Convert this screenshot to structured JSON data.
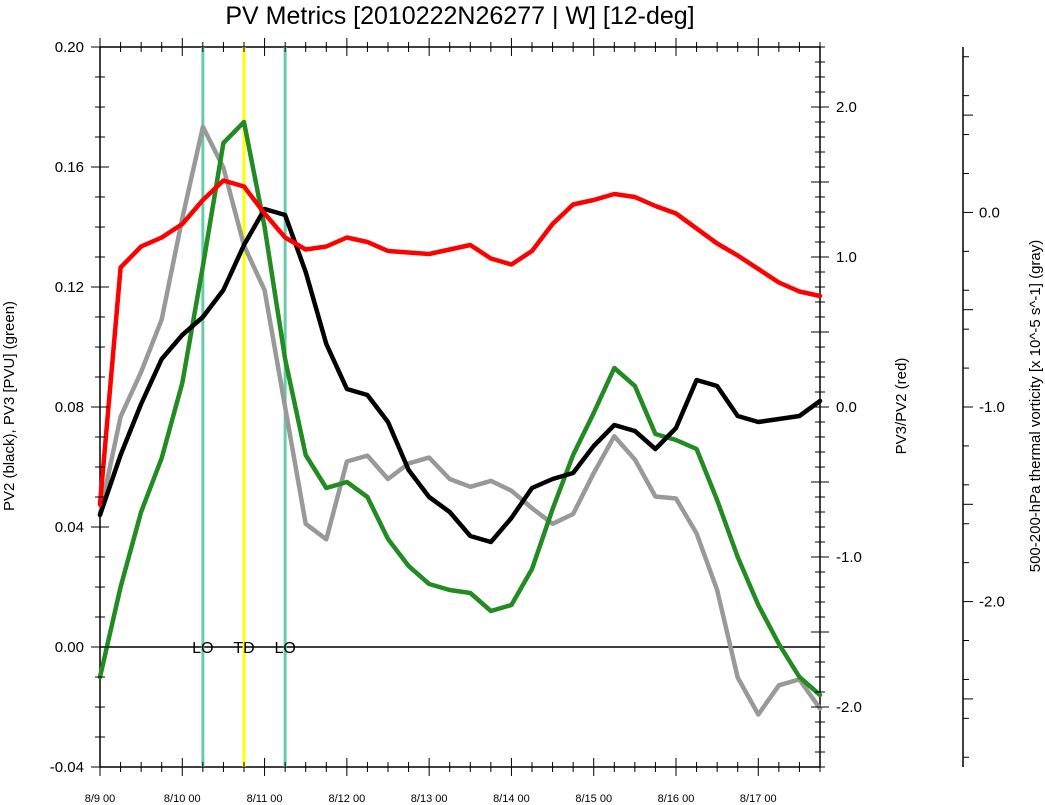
{
  "chart_data": {
    "type": "line",
    "title": "PV Metrics [2010222N26277 | W] [12-deg]",
    "x_tick_labels": [
      "8/9 00",
      "8/10 00",
      "8/11 00",
      "8/12 00",
      "8/13 00",
      "8/14 00",
      "8/15 00",
      "8/16 00",
      "8/17 00"
    ],
    "xlim": [
      0,
      8.75
    ],
    "x_unit": "days since 8/9 00",
    "left_axis": {
      "label": "PV2 (black), PV3 [PVU] (green)",
      "ylim": [
        -0.04,
        0.2
      ],
      "tick_labels": [
        "-0.04",
        "0.00",
        "0.04",
        "0.08",
        "0.12",
        "0.16",
        "0.20"
      ],
      "ticks": [
        -0.04,
        0.0,
        0.04,
        0.08,
        0.12,
        0.16,
        0.2
      ]
    },
    "right_axis": {
      "label": "PV3/PV2 (red)",
      "ylim": [
        -2.4,
        2.4
      ],
      "tick_labels": [
        "-2.0",
        "-1.0",
        "0.0",
        "1.0",
        "2.0"
      ],
      "ticks": [
        -2.0,
        -1.0,
        0.0,
        1.0,
        2.0
      ]
    },
    "far_right_axis": {
      "label": "500-200-hPa thermal vorticity [x 10^-5 s^-1] (gray)",
      "ylim": [
        -2.85,
        0.85
      ],
      "tick_labels": [
        "-2.0",
        "-1.0",
        "0.0"
      ],
      "ticks": [
        -2.0,
        -1.0,
        0.0
      ]
    },
    "events": [
      {
        "label": "LO",
        "x": 1.25,
        "color": "#66ccaa"
      },
      {
        "label": "TD",
        "x": 1.75,
        "color": "#ffff00"
      },
      {
        "label": "LO",
        "x": 2.25,
        "color": "#66ccaa"
      }
    ],
    "series": [
      {
        "axis": "left",
        "color": "#000000",
        "x": [
          0,
          0.25,
          0.5,
          0.75,
          1.0,
          1.25,
          1.5,
          1.75,
          2.0,
          2.25,
          2.5,
          2.75,
          3.0,
          3.25,
          3.5,
          3.75,
          4.0,
          4.25,
          4.5,
          4.75,
          5.0,
          5.25,
          5.5,
          5.75,
          6.0,
          6.25,
          6.5,
          6.75,
          7.0,
          7.25,
          7.5,
          7.75,
          8.0,
          8.25,
          8.5,
          8.75
        ],
        "values": [
          0.044,
          0.064,
          0.081,
          0.096,
          0.104,
          0.11,
          0.119,
          0.134,
          0.146,
          0.144,
          0.125,
          0.101,
          0.086,
          0.084,
          0.075,
          0.059,
          0.05,
          0.045,
          0.037,
          0.035,
          0.043,
          0.053,
          0.056,
          0.058,
          0.067,
          0.074,
          0.072,
          0.066,
          0.073,
          0.089,
          0.087,
          0.077,
          0.075,
          0.076,
          0.077,
          0.082
        ]
      },
      {
        "axis": "left",
        "color": "#228b22",
        "x": [
          0,
          0.25,
          0.5,
          0.75,
          1.0,
          1.25,
          1.5,
          1.75,
          2.0,
          2.25,
          2.5,
          2.75,
          3.0,
          3.25,
          3.5,
          3.75,
          4.0,
          4.25,
          4.5,
          4.75,
          5.0,
          5.25,
          5.5,
          5.75,
          6.0,
          6.25,
          6.5,
          6.75,
          7.0,
          7.25,
          7.5,
          7.75,
          8.0,
          8.25,
          8.5,
          8.75
        ],
        "values": [
          -0.01,
          0.02,
          0.045,
          0.063,
          0.088,
          0.127,
          0.168,
          0.175,
          0.14,
          0.096,
          0.064,
          0.053,
          0.055,
          0.05,
          0.036,
          0.027,
          0.021,
          0.019,
          0.018,
          0.012,
          0.014,
          0.026,
          0.046,
          0.064,
          0.078,
          0.093,
          0.087,
          0.071,
          0.069,
          0.066,
          0.049,
          0.03,
          0.014,
          0.001,
          -0.01,
          -0.016
        ]
      },
      {
        "axis": "right",
        "color": "#ff0000",
        "x": [
          0,
          0.25,
          0.5,
          0.75,
          1.0,
          1.25,
          1.5,
          1.75,
          2.0,
          2.25,
          2.5,
          2.75,
          3.0,
          3.25,
          3.5,
          3.75,
          4.0,
          4.25,
          4.5,
          4.75,
          5.0,
          5.25,
          5.5,
          5.75,
          6.0,
          6.25,
          6.5,
          6.75,
          7.0,
          7.25,
          7.5,
          7.75,
          8.0,
          8.25,
          8.5,
          8.75
        ],
        "values": [
          -0.65,
          0.93,
          1.07,
          1.13,
          1.22,
          1.38,
          1.51,
          1.47,
          1.29,
          1.13,
          1.05,
          1.07,
          1.13,
          1.1,
          1.04,
          1.03,
          1.02,
          1.05,
          1.08,
          0.99,
          0.95,
          1.04,
          1.22,
          1.35,
          1.38,
          1.42,
          1.4,
          1.34,
          1.29,
          1.19,
          1.09,
          1.01,
          0.92,
          0.83,
          0.77,
          0.74
        ]
      },
      {
        "axis": "far_right",
        "color": "#999999",
        "x": [
          0,
          0.25,
          0.5,
          0.75,
          1.0,
          1.25,
          1.5,
          1.75,
          2.0,
          2.25,
          2.5,
          2.75,
          3.0,
          3.25,
          3.5,
          3.75,
          4.0,
          4.25,
          4.5,
          4.75,
          5.0,
          5.25,
          5.5,
          5.75,
          6.0,
          6.25,
          6.5,
          6.75,
          7.0,
          7.25,
          7.5,
          7.75,
          8.0,
          8.25,
          8.5,
          8.75
        ],
        "values": [
          -1.55,
          -1.05,
          -0.82,
          -0.55,
          -0.03,
          0.44,
          0.23,
          -0.17,
          -0.4,
          -1.0,
          -1.6,
          -1.68,
          -1.28,
          -1.25,
          -1.37,
          -1.29,
          -1.26,
          -1.37,
          -1.41,
          -1.38,
          -1.43,
          -1.52,
          -1.6,
          -1.55,
          -1.34,
          -1.15,
          -1.27,
          -1.46,
          -1.47,
          -1.65,
          -1.94,
          -2.39,
          -2.58,
          -2.43,
          -2.4,
          -2.55
        ]
      }
    ]
  }
}
